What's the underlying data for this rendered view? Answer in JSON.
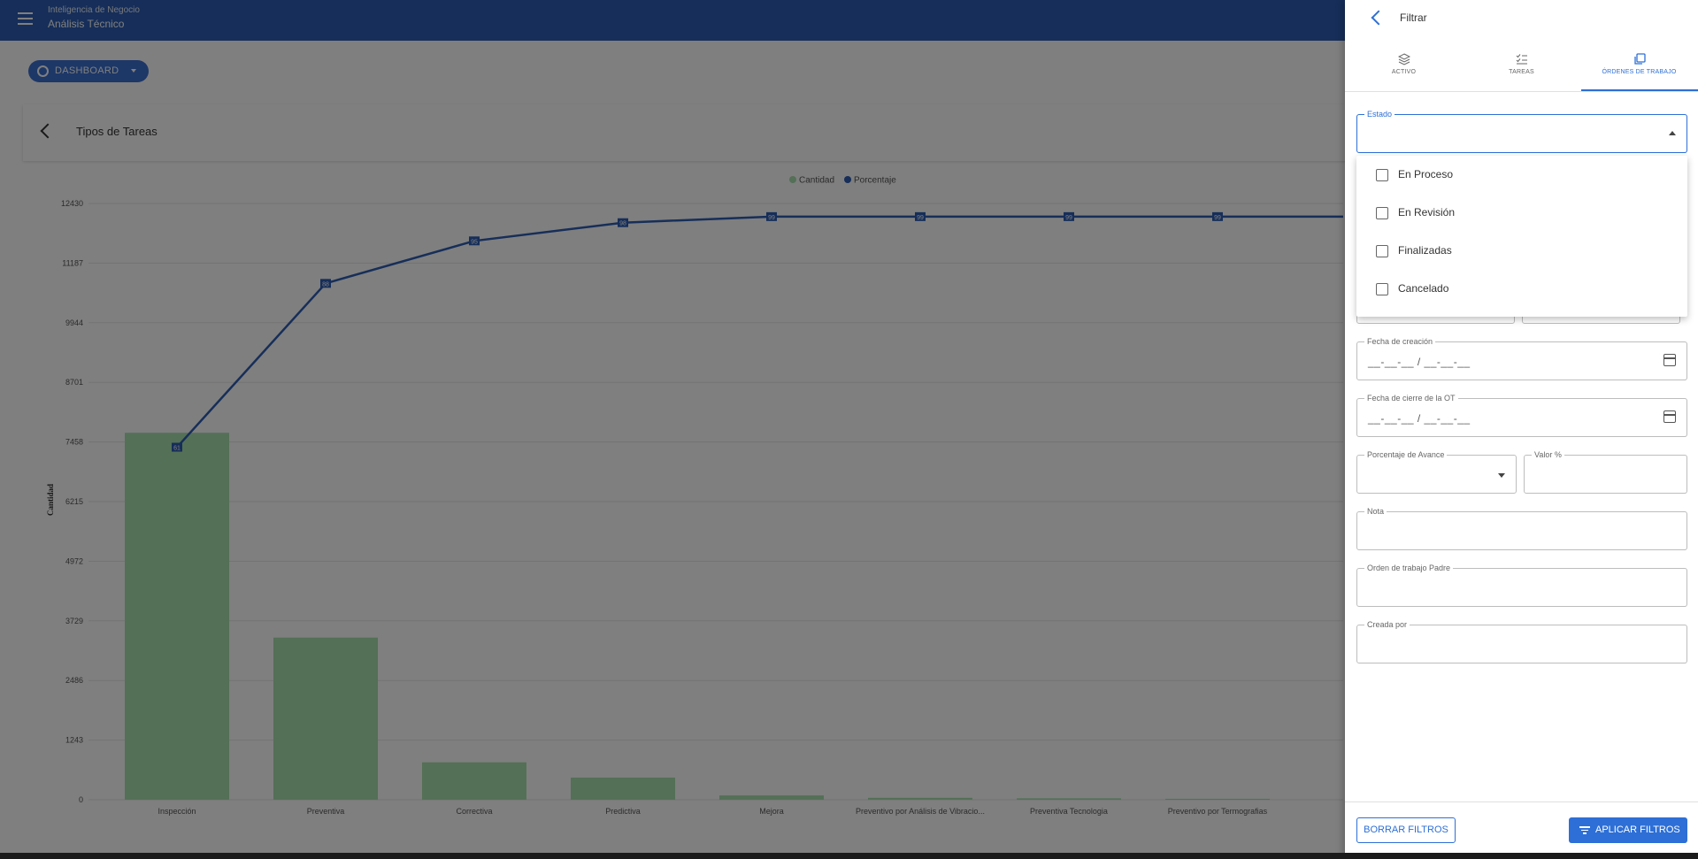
{
  "app": {
    "subtitle": "Inteligencia de Negocio",
    "title": "Análisis Técnico"
  },
  "dashboard_button": {
    "label": "DASHBOARD"
  },
  "card": {
    "title": "Tipos de Tareas"
  },
  "chart_data": {
    "type": "bar",
    "categories": [
      "Inspección",
      "Preventiva",
      "Correctiva",
      "Predictiva",
      "Mejora",
      "Preventivo por Análisis de Vibracio...",
      "Preventiva Tecnologia",
      "Preventivo por Termografias"
    ],
    "series": [
      {
        "name": "Cantidad",
        "type": "bar",
        "color": "#a8e0ae",
        "values": [
          7650,
          3380,
          780,
          460,
          90,
          40,
          30,
          20
        ]
      },
      {
        "name": "Porcentaje",
        "type": "line",
        "color": "#2d5db3",
        "values": [
          61,
          88,
          95,
          98,
          99,
          99,
          99,
          99
        ]
      }
    ],
    "ylabel": "Cantidad",
    "yticks": [
      0,
      1243,
      2486,
      3729,
      4972,
      6215,
      7458,
      8701,
      9944,
      11187,
      12430
    ],
    "ylim": [
      0,
      12430
    ],
    "grid": true,
    "legend": "top-center"
  },
  "drawer": {
    "title": "Filtrar",
    "tabs": [
      {
        "label": "ACTIVO",
        "icon": "layers-icon"
      },
      {
        "label": "TAREAS",
        "icon": "checklist-icon"
      },
      {
        "label": "ÓRDENES DE TRABAJO",
        "icon": "copy-icon"
      }
    ],
    "estado": {
      "label": "Estado",
      "options": [
        "En Proceso",
        "En Revisión",
        "Finalizadas",
        "Cancelado"
      ]
    },
    "fecha_creacion": {
      "label": "Fecha de creación",
      "value": "__-__-__ / __-__-__"
    },
    "fecha_cierre": {
      "label": "Fecha de cierre de la OT",
      "value": "__-__-__ / __-__-__"
    },
    "porcentaje_avance": {
      "label": "Porcentaje de Avance"
    },
    "valor": {
      "label": "Valor %"
    },
    "nota": {
      "label": "Nota"
    },
    "orden_padre": {
      "label": "Orden de trabajo Padre"
    },
    "creada_por": {
      "label": "Creada por"
    },
    "clear_button": "BORRAR FILTROS",
    "apply_button": "APLICAR FILTROS"
  },
  "colors": {
    "primary": "#2d5db3",
    "accent": "#2d6fd6",
    "bar": "#a8e0ae"
  }
}
